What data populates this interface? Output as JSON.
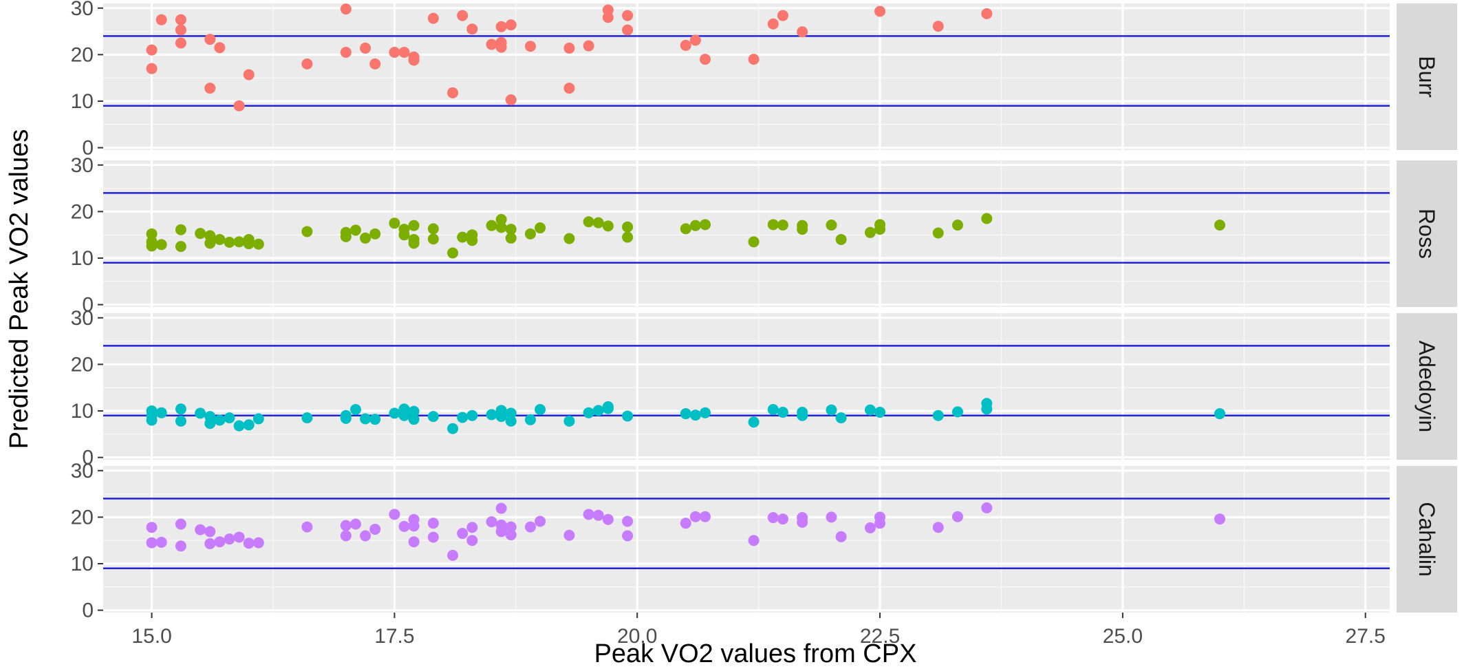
{
  "chart_data": {
    "type": "scatter",
    "xlabel": "Peak VO2 values from CPX",
    "ylabel": "Predicted Peak VO2 values",
    "xlim": [
      14.5,
      27.75
    ],
    "ylim": [
      -0.5,
      31
    ],
    "x_ticks": [
      15.0,
      17.5,
      20.0,
      22.5,
      25.0,
      27.5
    ],
    "x_tick_labels": [
      "15.0",
      "17.5",
      "20.0",
      "22.5",
      "25.0",
      "27.5"
    ],
    "y_ticks": [
      0,
      10,
      20,
      30
    ],
    "y_tick_labels": [
      "0",
      "10",
      "20",
      "30"
    ],
    "grid": true,
    "legend": "none",
    "reference_lines": [
      24,
      9
    ],
    "reference_line_color": "#2222dd",
    "panel_background": "#ebebeb",
    "strip_background": "#d9d9d9",
    "panels": [
      {
        "name": "Burr",
        "color": "#f8766d",
        "points": [
          [
            15.0,
            21.0
          ],
          [
            15.0,
            17.0
          ],
          [
            15.1,
            27.5
          ],
          [
            15.3,
            27.5
          ],
          [
            15.3,
            25.3
          ],
          [
            15.3,
            22.5
          ],
          [
            15.6,
            23.3
          ],
          [
            15.6,
            12.8
          ],
          [
            15.7,
            21.5
          ],
          [
            15.9,
            9.0
          ],
          [
            16.0,
            15.7
          ],
          [
            16.6,
            18.0
          ],
          [
            17.0,
            29.8
          ],
          [
            17.0,
            20.5
          ],
          [
            17.2,
            21.4
          ],
          [
            17.3,
            18.0
          ],
          [
            17.5,
            20.5
          ],
          [
            17.6,
            20.5
          ],
          [
            17.7,
            19.5
          ],
          [
            17.7,
            18.8
          ],
          [
            17.9,
            27.8
          ],
          [
            18.1,
            11.8
          ],
          [
            18.2,
            28.4
          ],
          [
            18.3,
            25.5
          ],
          [
            18.5,
            22.2
          ],
          [
            18.6,
            26.0
          ],
          [
            18.6,
            22.6
          ],
          [
            18.6,
            21.6
          ],
          [
            18.7,
            26.4
          ],
          [
            18.7,
            10.3
          ],
          [
            18.9,
            21.8
          ],
          [
            19.3,
            21.4
          ],
          [
            19.3,
            12.8
          ],
          [
            19.5,
            21.9
          ],
          [
            19.7,
            29.6
          ],
          [
            19.7,
            28.0
          ],
          [
            19.9,
            28.4
          ],
          [
            19.9,
            25.3
          ],
          [
            20.5,
            22.0
          ],
          [
            20.6,
            23.1
          ],
          [
            20.7,
            19.0
          ],
          [
            21.2,
            19.0
          ],
          [
            21.4,
            26.6
          ],
          [
            21.5,
            28.4
          ],
          [
            21.7,
            24.9
          ],
          [
            22.5,
            29.3
          ],
          [
            23.1,
            26.1
          ],
          [
            23.6,
            28.8
          ]
        ]
      },
      {
        "name": "Ross",
        "color": "#7cae00",
        "points": [
          [
            15.0,
            15.2
          ],
          [
            15.0,
            13.5
          ],
          [
            15.0,
            12.6
          ],
          [
            15.1,
            12.9
          ],
          [
            15.3,
            16.1
          ],
          [
            15.3,
            12.5
          ],
          [
            15.5,
            15.3
          ],
          [
            15.6,
            14.8
          ],
          [
            15.6,
            13.2
          ],
          [
            15.7,
            14.0
          ],
          [
            15.8,
            13.4
          ],
          [
            15.9,
            13.5
          ],
          [
            16.0,
            14.0
          ],
          [
            16.0,
            13.1
          ],
          [
            16.1,
            13.0
          ],
          [
            16.6,
            15.7
          ],
          [
            17.0,
            15.5
          ],
          [
            17.0,
            14.6
          ],
          [
            17.1,
            16.0
          ],
          [
            17.2,
            14.3
          ],
          [
            17.3,
            15.2
          ],
          [
            17.5,
            17.5
          ],
          [
            17.6,
            16.2
          ],
          [
            17.6,
            15.0
          ],
          [
            17.7,
            17.0
          ],
          [
            17.7,
            14.0
          ],
          [
            17.7,
            13.2
          ],
          [
            17.9,
            16.3
          ],
          [
            17.9,
            14.1
          ],
          [
            18.1,
            11.1
          ],
          [
            18.2,
            14.5
          ],
          [
            18.3,
            15.0
          ],
          [
            18.3,
            13.8
          ],
          [
            18.5,
            17.0
          ],
          [
            18.6,
            18.3
          ],
          [
            18.6,
            16.6
          ],
          [
            18.7,
            16.2
          ],
          [
            18.7,
            14.3
          ],
          [
            18.9,
            15.2
          ],
          [
            19.0,
            16.5
          ],
          [
            19.3,
            14.2
          ],
          [
            19.5,
            17.8
          ],
          [
            19.6,
            17.6
          ],
          [
            19.7,
            16.9
          ],
          [
            19.9,
            16.7
          ],
          [
            19.9,
            14.5
          ],
          [
            20.5,
            16.3
          ],
          [
            20.6,
            17.0
          ],
          [
            20.7,
            17.2
          ],
          [
            21.2,
            13.5
          ],
          [
            21.4,
            17.2
          ],
          [
            21.5,
            17.1
          ],
          [
            21.7,
            17.0
          ],
          [
            21.7,
            16.2
          ],
          [
            22.0,
            17.1
          ],
          [
            22.1,
            14.0
          ],
          [
            22.4,
            15.5
          ],
          [
            22.5,
            17.2
          ],
          [
            22.5,
            16.2
          ],
          [
            23.1,
            15.4
          ],
          [
            23.3,
            17.1
          ],
          [
            23.6,
            18.5
          ],
          [
            26.0,
            17.1
          ]
        ]
      },
      {
        "name": "Adedoyin",
        "color": "#00bfc4",
        "points": [
          [
            15.0,
            10.0
          ],
          [
            15.0,
            9.0
          ],
          [
            15.0,
            8.0
          ],
          [
            15.1,
            9.6
          ],
          [
            15.3,
            10.4
          ],
          [
            15.3,
            7.8
          ],
          [
            15.5,
            9.5
          ],
          [
            15.6,
            8.8
          ],
          [
            15.6,
            7.3
          ],
          [
            15.7,
            8.0
          ],
          [
            15.8,
            8.5
          ],
          [
            15.9,
            6.8
          ],
          [
            16.0,
            7.0
          ],
          [
            16.1,
            8.3
          ],
          [
            16.6,
            8.5
          ],
          [
            17.0,
            9.0
          ],
          [
            17.0,
            8.4
          ],
          [
            17.1,
            10.3
          ],
          [
            17.2,
            8.3
          ],
          [
            17.3,
            8.2
          ],
          [
            17.5,
            9.5
          ],
          [
            17.6,
            10.4
          ],
          [
            17.6,
            9.0
          ],
          [
            17.7,
            9.9
          ],
          [
            17.7,
            8.2
          ],
          [
            17.9,
            8.8
          ],
          [
            18.1,
            6.2
          ],
          [
            18.2,
            8.6
          ],
          [
            18.3,
            9.0
          ],
          [
            18.5,
            9.2
          ],
          [
            18.6,
            10.1
          ],
          [
            18.6,
            8.8
          ],
          [
            18.7,
            9.5
          ],
          [
            18.7,
            7.8
          ],
          [
            18.9,
            8.1
          ],
          [
            19.0,
            10.3
          ],
          [
            19.3,
            7.8
          ],
          [
            19.5,
            9.6
          ],
          [
            19.6,
            10.1
          ],
          [
            19.7,
            10.5
          ],
          [
            19.7,
            10.9
          ],
          [
            19.9,
            8.9
          ],
          [
            20.5,
            9.4
          ],
          [
            20.6,
            9.1
          ],
          [
            20.7,
            9.6
          ],
          [
            21.2,
            7.6
          ],
          [
            21.4,
            10.3
          ],
          [
            21.5,
            9.7
          ],
          [
            21.7,
            9.7
          ],
          [
            21.7,
            9.0
          ],
          [
            22.0,
            10.2
          ],
          [
            22.1,
            8.5
          ],
          [
            22.4,
            10.2
          ],
          [
            22.5,
            9.7
          ],
          [
            23.1,
            9.0
          ],
          [
            23.3,
            9.8
          ],
          [
            23.6,
            11.6
          ],
          [
            23.6,
            10.4
          ],
          [
            26.0,
            9.4
          ]
        ]
      },
      {
        "name": "Cahalin",
        "color": "#c77cff",
        "points": [
          [
            15.0,
            17.8
          ],
          [
            15.0,
            14.5
          ],
          [
            15.1,
            14.6
          ],
          [
            15.3,
            18.5
          ],
          [
            15.3,
            13.8
          ],
          [
            15.5,
            17.3
          ],
          [
            15.6,
            16.9
          ],
          [
            15.6,
            14.3
          ],
          [
            15.7,
            14.7
          ],
          [
            15.8,
            15.3
          ],
          [
            15.9,
            15.7
          ],
          [
            16.0,
            14.4
          ],
          [
            16.1,
            14.5
          ],
          [
            16.6,
            17.9
          ],
          [
            17.0,
            18.2
          ],
          [
            17.0,
            16.0
          ],
          [
            17.1,
            18.5
          ],
          [
            17.2,
            16.0
          ],
          [
            17.3,
            17.4
          ],
          [
            17.5,
            20.6
          ],
          [
            17.6,
            18.0
          ],
          [
            17.7,
            19.5
          ],
          [
            17.7,
            18.1
          ],
          [
            17.7,
            14.7
          ],
          [
            17.9,
            18.7
          ],
          [
            17.9,
            15.7
          ],
          [
            18.1,
            11.8
          ],
          [
            18.2,
            16.5
          ],
          [
            18.3,
            17.8
          ],
          [
            18.3,
            15.0
          ],
          [
            18.5,
            19.0
          ],
          [
            18.6,
            21.9
          ],
          [
            18.6,
            18.3
          ],
          [
            18.6,
            16.9
          ],
          [
            18.7,
            17.9
          ],
          [
            18.7,
            16.2
          ],
          [
            18.9,
            17.9
          ],
          [
            19.0,
            19.1
          ],
          [
            19.3,
            16.1
          ],
          [
            19.5,
            20.6
          ],
          [
            19.6,
            20.4
          ],
          [
            19.7,
            19.5
          ],
          [
            19.9,
            19.1
          ],
          [
            19.9,
            16.0
          ],
          [
            20.5,
            18.7
          ],
          [
            20.6,
            20.1
          ],
          [
            20.7,
            20.1
          ],
          [
            21.2,
            15.0
          ],
          [
            21.4,
            19.9
          ],
          [
            21.5,
            19.6
          ],
          [
            21.7,
            19.9
          ],
          [
            21.7,
            18.9
          ],
          [
            22.0,
            20.0
          ],
          [
            22.1,
            15.8
          ],
          [
            22.4,
            17.7
          ],
          [
            22.5,
            20.0
          ],
          [
            22.5,
            18.7
          ],
          [
            23.1,
            17.8
          ],
          [
            23.3,
            20.1
          ],
          [
            23.6,
            22.0
          ],
          [
            26.0,
            19.6
          ]
        ]
      }
    ]
  }
}
